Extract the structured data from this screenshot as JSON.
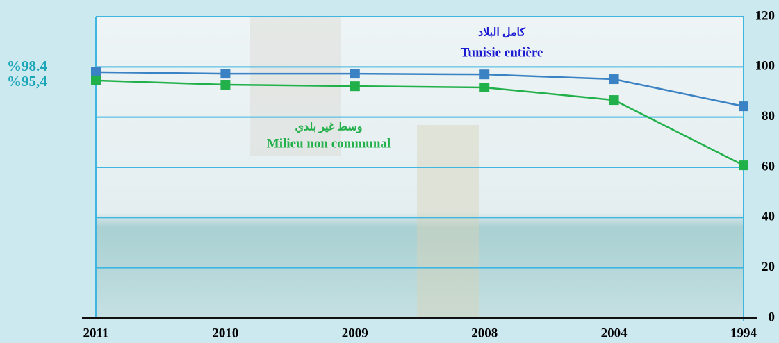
{
  "chart_data": {
    "type": "line",
    "categories": [
      "2011",
      "2010",
      "2009",
      "2008",
      "2004",
      "1994"
    ],
    "series": [
      {
        "name": "Tunisie entière",
        "name_ar": "كامل البلاد",
        "color": "#3a82c4",
        "label_color": "#1a1ad0",
        "values": [
          97.9,
          97.3,
          97.3,
          97.0,
          95.1,
          84.3
        ]
      },
      {
        "name": "Milieu non communal",
        "name_ar": "وسط غير بلدي",
        "color": "#22b04b",
        "label_color": "#22b04b",
        "values": [
          94.6,
          92.9,
          92.3,
          91.8,
          86.8,
          60.8
        ]
      }
    ],
    "annotations": [
      "%98.4",
      "%95,4"
    ],
    "annotation_color": "#1aa6b7",
    "ylim": [
      0,
      120
    ],
    "yticks": [
      0,
      20,
      40,
      60,
      80,
      100,
      120
    ],
    "grid": true,
    "grid_color": "#3fb6e0"
  }
}
